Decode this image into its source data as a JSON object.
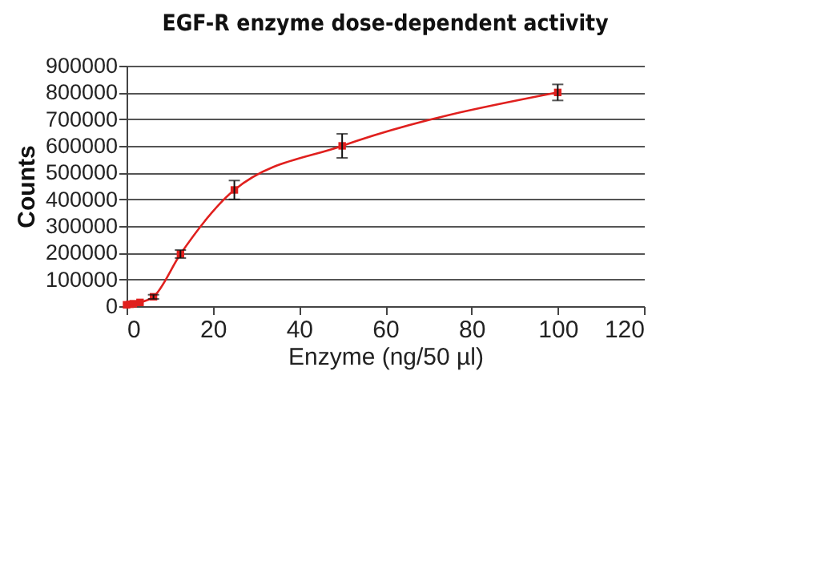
{
  "chart_data": {
    "type": "line",
    "title": "EGF-R enzyme dose-dependent activity",
    "xlabel": "Enzyme (ng/50 µl)",
    "ylabel": "Counts",
    "x": [
      0,
      0.78,
      1.56,
      3.125,
      6.25,
      12.5,
      25,
      50,
      100
    ],
    "series": [
      {
        "color": "#e0201e",
        "values": [
          5000,
          7000,
          9000,
          14000,
          35000,
          195000,
          435000,
          600000,
          800000
        ],
        "errors": [
          null,
          null,
          null,
          null,
          8000,
          15000,
          35000,
          45000,
          30000
        ]
      }
    ],
    "xlim": [
      0,
      120
    ],
    "xticks": [
      0,
      20,
      40,
      60,
      80,
      100,
      120
    ],
    "ylim": [
      0,
      900000
    ],
    "yticks": [
      0,
      100000,
      200000,
      300000,
      400000,
      500000,
      600000,
      700000,
      800000,
      900000
    ],
    "grid": "y",
    "marker": "square",
    "line_style": "solid"
  }
}
